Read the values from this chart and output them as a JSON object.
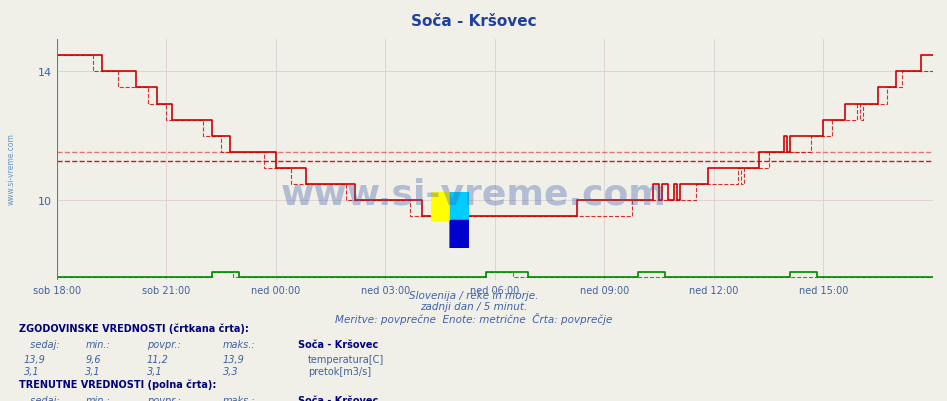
{
  "title": "Soča - Kršovec",
  "title_color": "#2040a0",
  "background_color": "#f0f0e8",
  "plot_bg_color": "#f0f0e8",
  "grid_color": "#d8c8c8",
  "x_labels": [
    "sob 18:00",
    "sob 21:00",
    "ned 00:00",
    "ned 03:00",
    "ned 06:00",
    "ned 09:00",
    "ned 12:00",
    "ned 15:00"
  ],
  "x_tick_positions": [
    0,
    36,
    72,
    108,
    144,
    180,
    216,
    252
  ],
  "y_ticks": [
    10,
    14
  ],
  "y_min": 7.5,
  "y_max": 15.0,
  "avg_hist": 11.2,
  "avg_curr": 11.5,
  "temp_color": "#cc0000",
  "flow_color": "#008800",
  "watermark_text": "www.si-vreme.com",
  "watermark_color": "#4060b0",
  "watermark_alpha": 0.35,
  "subtitle1": "Slovenija / reke in morje.",
  "subtitle2": "zadnji dan / 5 minut.",
  "subtitle3": "Meritve: povprečne  Enote: metrične  Črta: povprečje",
  "subtitle_color": "#4060b0",
  "left_label": "www.si-vreme.com",
  "left_label_color": "#4080c0",
  "table_header_color": "#000080",
  "table_text_color": "#4060a0",
  "legend_temp_color": "#cc0000",
  "legend_flow_color": "#006600",
  "n_points": 289,
  "x_max": 288
}
